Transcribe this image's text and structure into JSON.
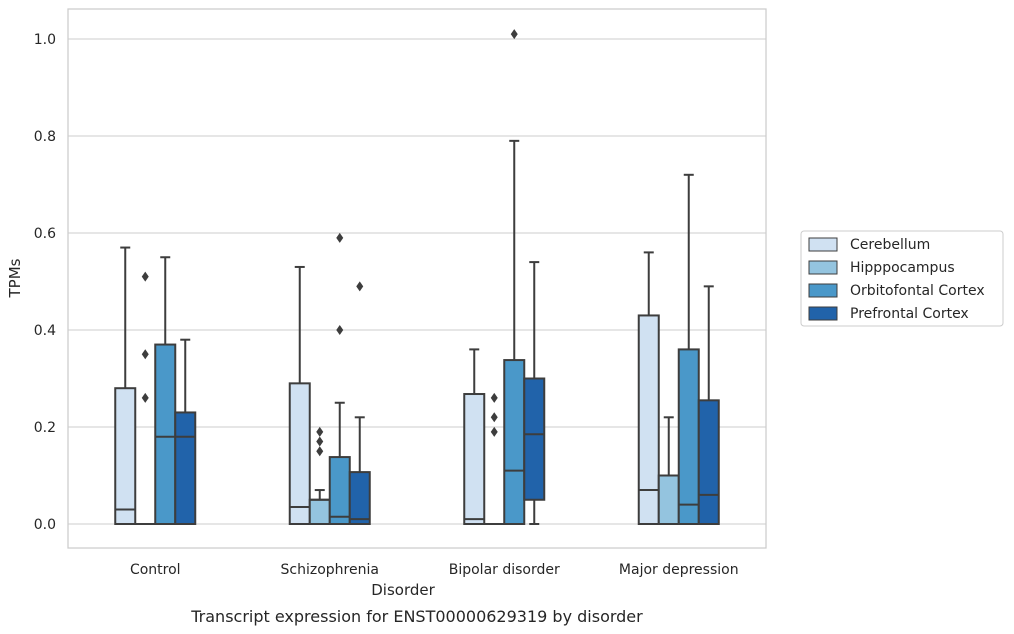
{
  "chart_data": {
    "type": "box",
    "title": "",
    "caption": "Transcript expression for ENST00000629319 by disorder",
    "xlabel": "Disorder",
    "ylabel": "TPMs",
    "ylim": [
      -0.05,
      1.06
    ],
    "yticks": [
      0.0,
      0.2,
      0.4,
      0.6,
      0.8,
      1.0
    ],
    "ytick_labels": [
      "0.0",
      "0.2",
      "0.4",
      "0.6",
      "0.8",
      "1.0"
    ],
    "grid": true,
    "legend_position": "right",
    "categories": [
      "Control",
      "Schizophrenia",
      "Bipolar disorder",
      "Major depression"
    ],
    "series": [
      {
        "name": "Cerebellum",
        "color": "#d0e1f2",
        "boxes": [
          {
            "whislo": 0.0,
            "q1": 0.0,
            "med": 0.03,
            "q3": 0.28,
            "whishi": 0.57,
            "fliers": []
          },
          {
            "whislo": 0.0,
            "q1": 0.0,
            "med": 0.035,
            "q3": 0.29,
            "whishi": 0.53,
            "fliers": []
          },
          {
            "whislo": 0.0,
            "q1": 0.0,
            "med": 0.01,
            "q3": 0.268,
            "whishi": 0.36,
            "fliers": []
          },
          {
            "whislo": 0.0,
            "q1": 0.0,
            "med": 0.07,
            "q3": 0.43,
            "whishi": 0.56,
            "fliers": []
          }
        ]
      },
      {
        "name": "Hipppocampus",
        "color": "#94c4df",
        "boxes": [
          {
            "whislo": 0.0,
            "q1": 0.0,
            "med": 0.0,
            "q3": 0.0,
            "whishi": 0.0,
            "fliers": [
              0.26,
              0.35,
              0.51
            ]
          },
          {
            "whislo": 0.0,
            "q1": 0.0,
            "med": 0.05,
            "q3": 0.05,
            "whishi": 0.07,
            "fliers": [
              0.15,
              0.17,
              0.19
            ]
          },
          {
            "whislo": 0.0,
            "q1": 0.0,
            "med": 0.0,
            "q3": 0.0,
            "whishi": 0.0,
            "fliers": [
              0.19,
              0.22,
              0.26
            ]
          },
          {
            "whislo": 0.0,
            "q1": 0.0,
            "med": 0.1,
            "q3": 0.1,
            "whishi": 0.22,
            "fliers": []
          }
        ]
      },
      {
        "name": "Orbitofontal Cortex",
        "color": "#4a98c9",
        "boxes": [
          {
            "whislo": 0.0,
            "q1": 0.0,
            "med": 0.18,
            "q3": 0.37,
            "whishi": 0.55,
            "fliers": []
          },
          {
            "whislo": 0.0,
            "q1": 0.0,
            "med": 0.015,
            "q3": 0.138,
            "whishi": 0.25,
            "fliers": [
              0.4,
              0.59
            ]
          },
          {
            "whislo": 0.0,
            "q1": 0.0,
            "med": 0.11,
            "q3": 0.338,
            "whishi": 0.79,
            "fliers": [
              1.01
            ]
          },
          {
            "whislo": 0.0,
            "q1": 0.0,
            "med": 0.04,
            "q3": 0.36,
            "whishi": 0.72,
            "fliers": []
          }
        ]
      },
      {
        "name": "Prefrontal Cortex",
        "color": "#2163aa",
        "boxes": [
          {
            "whislo": 0.0,
            "q1": 0.0,
            "med": 0.18,
            "q3": 0.23,
            "whishi": 0.38,
            "fliers": []
          },
          {
            "whislo": 0.0,
            "q1": 0.0,
            "med": 0.01,
            "q3": 0.107,
            "whishi": 0.22,
            "fliers": [
              0.49
            ]
          },
          {
            "whislo": 0.0,
            "q1": 0.05,
            "med": 0.185,
            "q3": 0.3,
            "whishi": 0.54,
            "fliers": []
          },
          {
            "whislo": 0.0,
            "q1": 0.0,
            "med": 0.06,
            "q3": 0.255,
            "whishi": 0.49,
            "fliers": []
          }
        ]
      }
    ]
  }
}
